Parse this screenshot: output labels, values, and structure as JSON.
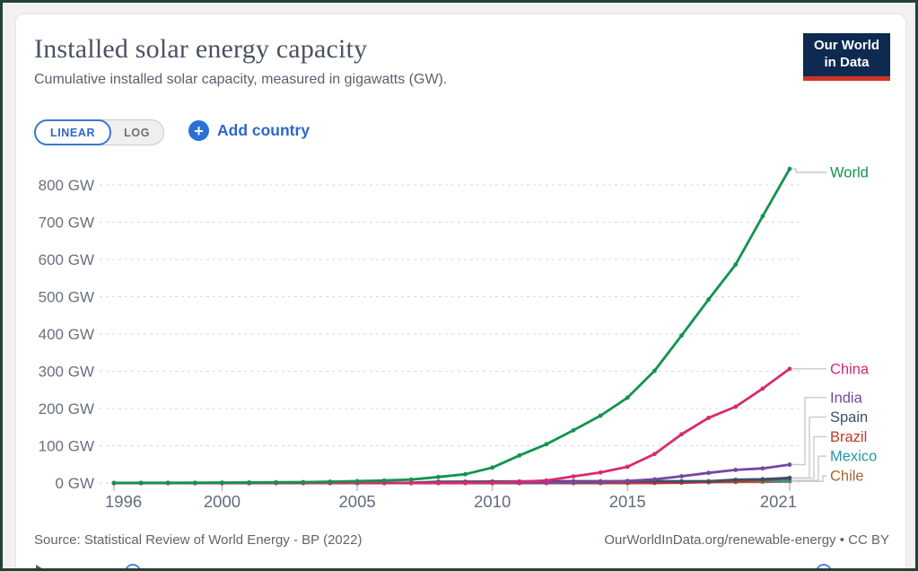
{
  "header": {
    "title": "Installed solar energy capacity",
    "subtitle": "Cumulative installed solar capacity, measured in gigawatts (GW).",
    "logo": {
      "line1": "Our World",
      "line2": "in Data"
    }
  },
  "controls": {
    "linear_label": "LINEAR",
    "log_label": "LOG",
    "add_country_label": "Add country",
    "plus_icon": "+"
  },
  "footer": {
    "source": "Source: Statistical Review of World Energy - BP (2022)",
    "link": "OurWorldInData.org/renewable-energy • CC BY"
  },
  "colors": {
    "accent_blue": "#2b6fd9",
    "logo_navy": "#0e2a50",
    "logo_red": "#cf3528",
    "grid": "#dadada",
    "axis_text": "#68707f",
    "connector": "#c9c9c9"
  },
  "chart_data": {
    "type": "line",
    "title": "Installed solar energy capacity",
    "subtitle": "Cumulative installed solar capacity, measured in gigawatts (GW).",
    "xlabel": "",
    "ylabel": "GW",
    "y_unit": "GW",
    "ylim": [
      0,
      860
    ],
    "xlim": [
      1996,
      2021
    ],
    "grid": "dashed-horizontal",
    "legend_position": "right-labels",
    "x": [
      1996,
      1997,
      1998,
      1999,
      2000,
      2001,
      2002,
      2003,
      2004,
      2005,
      2006,
      2007,
      2008,
      2009,
      2010,
      2011,
      2012,
      2013,
      2014,
      2015,
      2016,
      2017,
      2018,
      2019,
      2020,
      2021
    ],
    "x_tick_labels": [
      1996,
      2000,
      2005,
      2010,
      2015,
      2021
    ],
    "y_ticks": [
      0,
      100,
      200,
      300,
      400,
      500,
      600,
      700,
      800
    ],
    "series": [
      {
        "name": "World",
        "color": "#12934f",
        "values": [
          0.3,
          0.4,
          0.6,
          0.8,
          1.2,
          1.5,
          1.9,
          2.5,
          3.6,
          5.0,
          6.7,
          9.2,
          16.2,
          23.6,
          41.5,
          73.9,
          104.2,
          141.4,
          180.7,
          229.1,
          301.2,
          395.9,
          492.6,
          586.4,
          716.2,
          843.1
        ]
      },
      {
        "name": "China",
        "color": "#d92a6e",
        "values": [
          0,
          0,
          0,
          0,
          0,
          0,
          0.1,
          0.1,
          0.1,
          0.1,
          0.2,
          0.2,
          0.3,
          0.4,
          1.0,
          3.1,
          6.7,
          17.8,
          28.4,
          43.5,
          77.8,
          130.8,
          175.0,
          204.7,
          253.4,
          306.4
        ]
      },
      {
        "name": "India",
        "color": "#7647a3",
        "values": [
          0,
          0,
          0,
          0,
          0,
          0,
          0,
          0,
          0,
          0,
          0,
          0,
          0.1,
          0.1,
          0.2,
          0.5,
          1.2,
          2.3,
          3.2,
          5.6,
          9.9,
          18.1,
          27.3,
          35.1,
          39.2,
          49.3
        ]
      },
      {
        "name": "Spain",
        "color": "#3e4f68",
        "values": [
          0,
          0,
          0,
          0,
          0,
          0,
          0,
          0,
          0.1,
          0.1,
          0.2,
          0.7,
          3.4,
          3.5,
          3.9,
          4.3,
          4.6,
          4.7,
          4.7,
          4.7,
          4.7,
          4.7,
          4.8,
          8.8,
          10.1,
          13.7
        ]
      },
      {
        "name": "Brazil",
        "color": "#c0392b",
        "values": [
          0,
          0,
          0,
          0,
          0,
          0,
          0,
          0,
          0,
          0,
          0,
          0,
          0,
          0,
          0,
          0,
          0,
          0,
          0,
          0.1,
          0.1,
          1.1,
          2.5,
          4.6,
          7.9,
          13.0
        ]
      },
      {
        "name": "Mexico",
        "color": "#2697a3",
        "values": [
          0,
          0,
          0,
          0,
          0,
          0,
          0,
          0,
          0,
          0,
          0,
          0,
          0,
          0,
          0,
          0,
          0.1,
          0.1,
          0.1,
          0.2,
          0.4,
          0.7,
          3.1,
          5.5,
          6.3,
          7.0
        ]
      },
      {
        "name": "Chile",
        "color": "#a2692f",
        "values": [
          0,
          0,
          0,
          0,
          0,
          0,
          0,
          0,
          0,
          0,
          0,
          0,
          0,
          0,
          0,
          0,
          0,
          0,
          0.2,
          0.6,
          1.1,
          1.8,
          2.1,
          2.6,
          3.2,
          4.4
        ]
      }
    ]
  }
}
